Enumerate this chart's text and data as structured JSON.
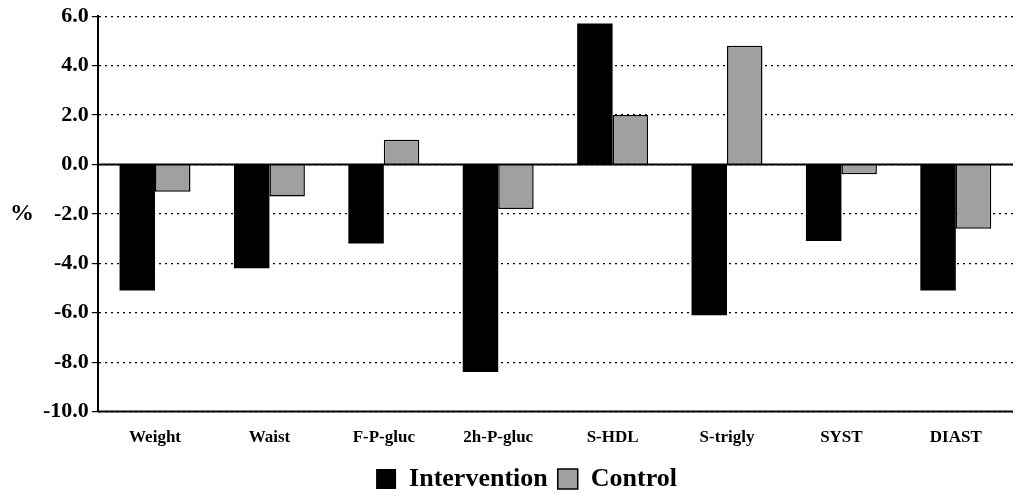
{
  "chart_data": {
    "type": "bar",
    "ylabel": "%",
    "categories": [
      "Weight",
      "Waist",
      "F-P-gluc",
      "2h-P-gluc",
      "S-HDL",
      "S-trigly",
      "SYST",
      "DIAST"
    ],
    "series": [
      {
        "name": "Intervention",
        "color": "#000000",
        "values": [
          -5.1,
          -4.2,
          -3.2,
          -8.4,
          5.7,
          -6.1,
          -3.1,
          -5.1
        ]
      },
      {
        "name": "Control",
        "color": "#a0a0a0",
        "values": [
          -1.1,
          -1.3,
          1.0,
          -1.8,
          2.0,
          4.8,
          -0.4,
          -2.6
        ]
      }
    ],
    "ylim": [
      -10,
      6
    ],
    "yticks": [
      {
        "value": 6,
        "label": "6.0"
      },
      {
        "value": 4,
        "label": "4.0"
      },
      {
        "value": 2,
        "label": "2.0"
      },
      {
        "value": 0,
        "label": "0.0"
      },
      {
        "value": -2,
        "label": "-2.0"
      },
      {
        "value": -4,
        "label": "-4.0"
      },
      {
        "value": -6,
        "label": "-6.0"
      },
      {
        "value": -8,
        "label": "-8.0"
      },
      {
        "value": -10,
        "label": "-10.0"
      }
    ],
    "grid": "y",
    "legend": "bottom"
  }
}
